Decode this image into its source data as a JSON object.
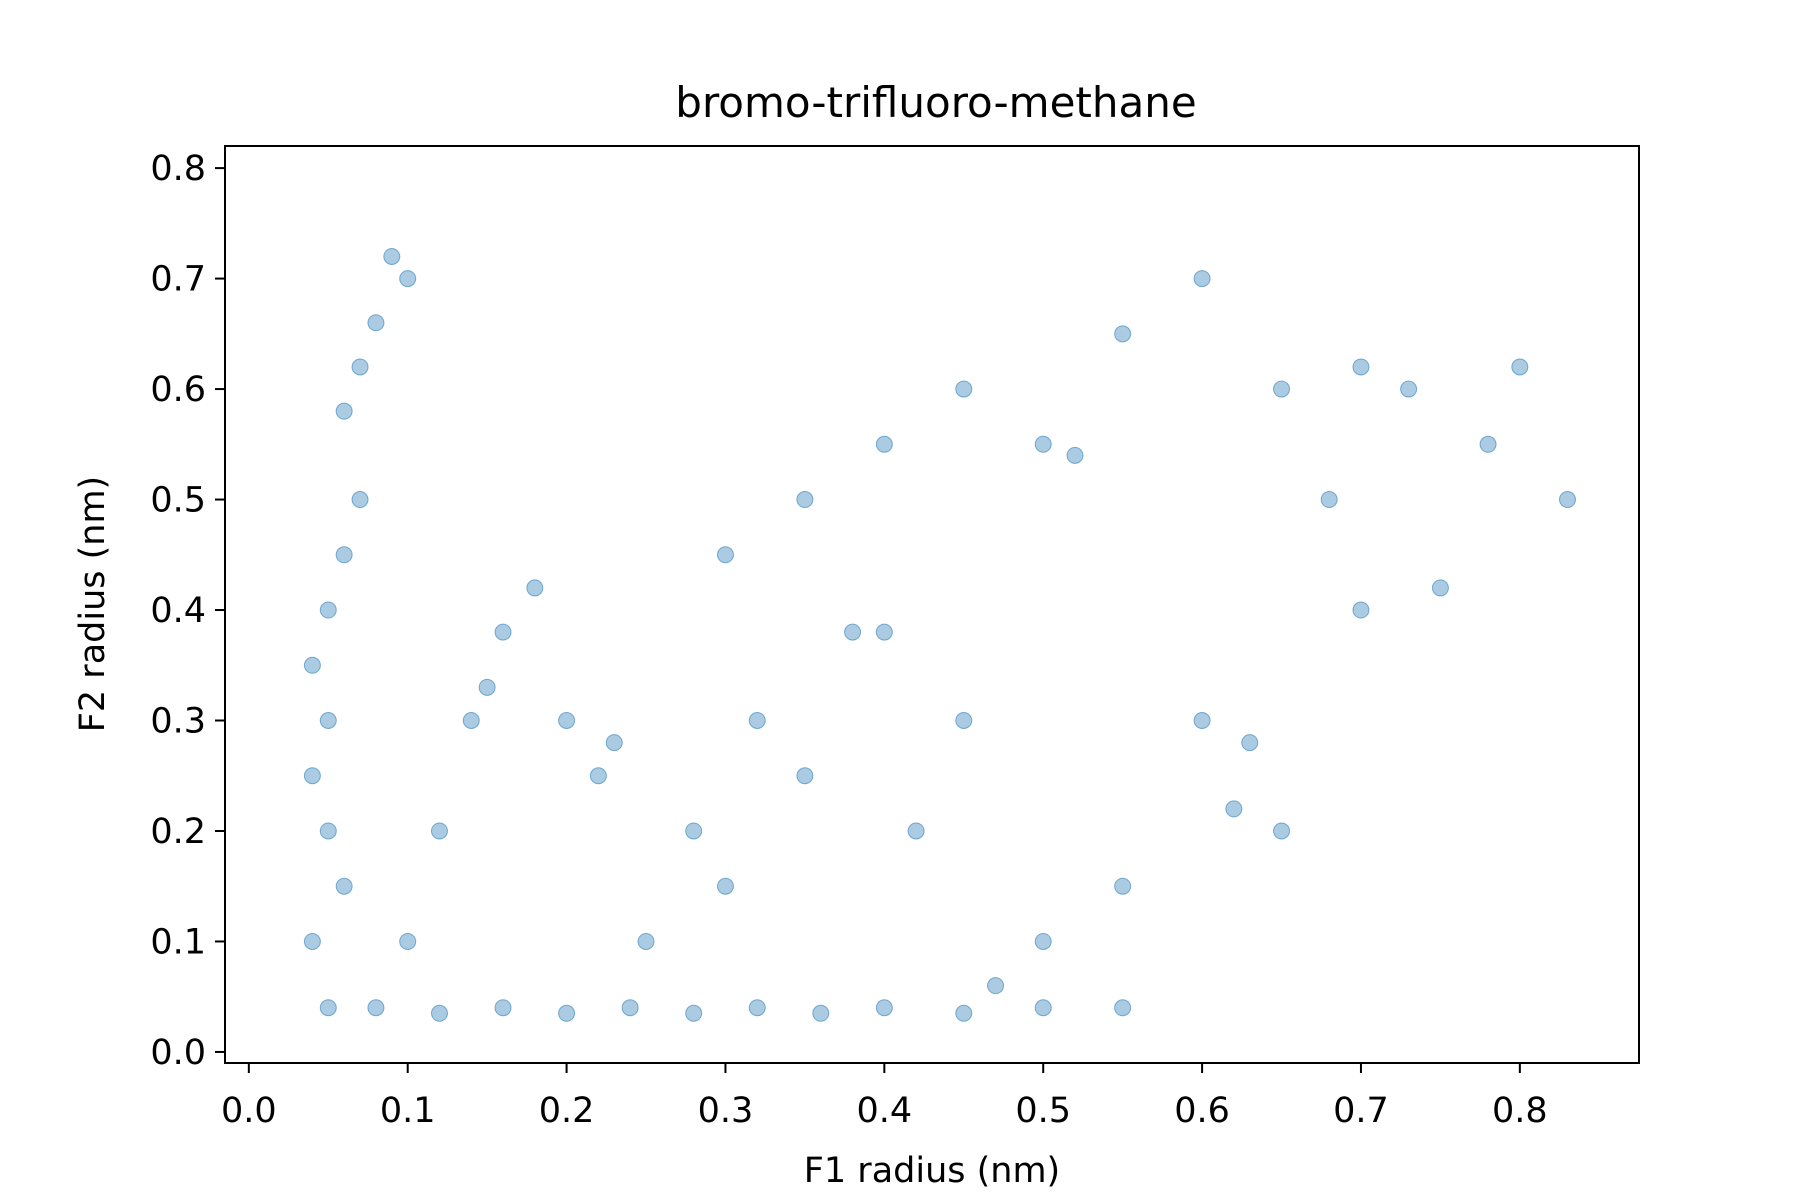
{
  "chart_data": {
    "type": "scatter",
    "title": "bromo-trifluoro-methane",
    "xlabel": "F1 radius (nm)",
    "ylabel": "F2 radius (nm)",
    "xlim": [
      -0.015,
      0.875
    ],
    "ylim": [
      -0.01,
      0.82
    ],
    "xticks": [
      0.0,
      0.1,
      0.2,
      0.3,
      0.4,
      0.5,
      0.6,
      0.7,
      0.8
    ],
    "xtick_labels": [
      "0.0",
      "0.1",
      "0.2",
      "0.3",
      "0.4",
      "0.5",
      "0.6",
      "0.7",
      "0.8"
    ],
    "yticks": [
      0.0,
      0.1,
      0.2,
      0.3,
      0.4,
      0.5,
      0.6,
      0.7,
      0.8
    ],
    "ytick_labels": [
      "0.0",
      "0.1",
      "0.2",
      "0.3",
      "0.4",
      "0.5",
      "0.6",
      "0.7",
      "0.8"
    ],
    "grid": false,
    "legend": "none",
    "marker_color": "#1f77b4",
    "series": [
      {
        "points": [
          [
            0.05,
            0.04
          ],
          [
            0.08,
            0.04
          ],
          [
            0.12,
            0.035
          ],
          [
            0.16,
            0.04
          ],
          [
            0.2,
            0.035
          ],
          [
            0.24,
            0.04
          ],
          [
            0.28,
            0.035
          ],
          [
            0.32,
            0.04
          ],
          [
            0.36,
            0.035
          ],
          [
            0.4,
            0.04
          ],
          [
            0.45,
            0.035
          ],
          [
            0.5,
            0.04
          ],
          [
            0.55,
            0.04
          ],
          [
            0.04,
            0.1
          ],
          [
            0.06,
            0.15
          ],
          [
            0.05,
            0.2
          ],
          [
            0.04,
            0.25
          ],
          [
            0.05,
            0.3
          ],
          [
            0.04,
            0.35
          ],
          [
            0.05,
            0.4
          ],
          [
            0.06,
            0.45
          ],
          [
            0.07,
            0.5
          ],
          [
            0.06,
            0.58
          ],
          [
            0.07,
            0.62
          ],
          [
            0.08,
            0.66
          ],
          [
            0.09,
            0.72
          ],
          [
            0.1,
            0.7
          ],
          [
            0.1,
            0.1
          ],
          [
            0.12,
            0.2
          ],
          [
            0.14,
            0.3
          ],
          [
            0.15,
            0.33
          ],
          [
            0.16,
            0.38
          ],
          [
            0.18,
            0.42
          ],
          [
            0.2,
            0.3
          ],
          [
            0.22,
            0.25
          ],
          [
            0.23,
            0.28
          ],
          [
            0.25,
            0.1
          ],
          [
            0.28,
            0.2
          ],
          [
            0.3,
            0.15
          ],
          [
            0.32,
            0.3
          ],
          [
            0.35,
            0.25
          ],
          [
            0.38,
            0.38
          ],
          [
            0.4,
            0.38
          ],
          [
            0.42,
            0.2
          ],
          [
            0.45,
            0.3
          ],
          [
            0.3,
            0.45
          ],
          [
            0.35,
            0.5
          ],
          [
            0.4,
            0.55
          ],
          [
            0.45,
            0.6
          ],
          [
            0.5,
            0.55
          ],
          [
            0.52,
            0.54
          ],
          [
            0.55,
            0.65
          ],
          [
            0.6,
            0.7
          ],
          [
            0.65,
            0.6
          ],
          [
            0.7,
            0.62
          ],
          [
            0.73,
            0.6
          ],
          [
            0.78,
            0.55
          ],
          [
            0.8,
            0.62
          ],
          [
            0.83,
            0.5
          ],
          [
            0.75,
            0.42
          ],
          [
            0.7,
            0.4
          ],
          [
            0.68,
            0.5
          ],
          [
            0.6,
            0.3
          ],
          [
            0.63,
            0.28
          ],
          [
            0.62,
            0.22
          ],
          [
            0.65,
            0.2
          ],
          [
            0.55,
            0.15
          ],
          [
            0.5,
            0.1
          ],
          [
            0.47,
            0.06
          ]
        ]
      }
    ]
  }
}
